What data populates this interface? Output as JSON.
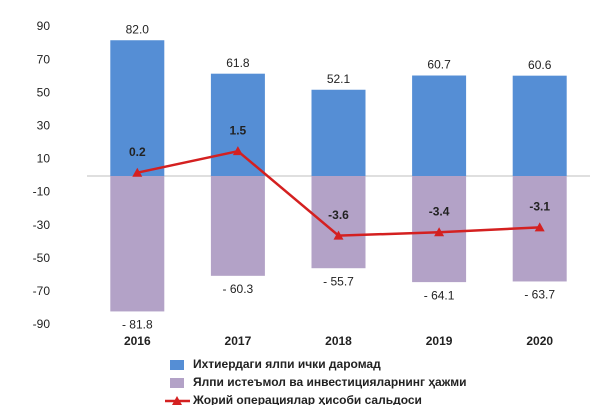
{
  "chart_data": {
    "type": "bar",
    "categories": [
      "2016",
      "2017",
      "2018",
      "2019",
      "2020"
    ],
    "series": [
      {
        "name": "Ихтиердаги ялпи ички даромад",
        "type": "bar",
        "color": "#558ed5",
        "values": [
          82.0,
          61.8,
          52.1,
          60.7,
          60.6
        ],
        "value_labels": [
          "82.0",
          "61.8",
          "52.1",
          "60.7",
          "60.6"
        ]
      },
      {
        "name": "Ялпи истеъмол ва инвестицияларнинг ҳажми",
        "type": "bar",
        "color": "#b3a2c7",
        "values": [
          -81.8,
          -60.3,
          -55.7,
          -64.1,
          -63.7
        ],
        "value_labels": [
          "- 81.8",
          "- 60.3",
          "- 55.7",
          "- 64.1",
          "- 63.7"
        ]
      },
      {
        "name": "Жорий операциялар ҳисоби сальдоси",
        "type": "line",
        "axis": "y2",
        "color": "#d42020",
        "values": [
          0.2,
          1.5,
          -3.6,
          -3.4,
          -3.1
        ]
      }
    ],
    "ylim": [
      -90,
      90
    ],
    "yticks": [
      90,
      70,
      50,
      30,
      10,
      -10,
      -30,
      -50,
      -70,
      -90
    ],
    "y2lim": [
      -9,
      9
    ],
    "grid": false,
    "legend": "bottom"
  }
}
